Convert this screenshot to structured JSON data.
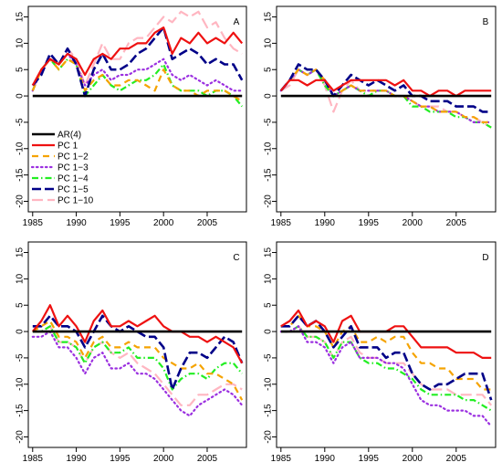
{
  "chart_data": {
    "type": "line",
    "x_ticks": [
      1985,
      1990,
      1995,
      2000,
      2005
    ],
    "y_ticks": [
      15,
      10,
      5,
      0,
      -5,
      -10,
      -15,
      -20
    ],
    "xlim": [
      1984.5,
      2009.5
    ],
    "ylim": [
      -22,
      17
    ],
    "legend": {
      "placement": "bottom-left of panel A",
      "entries": [
        "AR(4)",
        "PC 1",
        "PC 1−2",
        "PC 1−3",
        "PC 1−4",
        "PC 1−5",
        "PC 1−10"
      ]
    },
    "series_styles": [
      {
        "key": "ar4",
        "color": "#000000",
        "dash": "",
        "width": 2.6
      },
      {
        "key": "pc1",
        "color": "#ee1111",
        "dash": "",
        "width": 2.2
      },
      {
        "key": "pc12",
        "color": "#f5a300",
        "dash": "7,5",
        "width": 2.2
      },
      {
        "key": "pc13",
        "color": "#9b30e0",
        "dash": "1.5,3.5",
        "width": 2.2
      },
      {
        "key": "pc14",
        "color": "#22ee22",
        "dash": "7,3,1.5,3",
        "width": 2.2
      },
      {
        "key": "pc15",
        "color": "#000088",
        "dash": "10,4",
        "width": 2.6
      },
      {
        "key": "pc110",
        "color": "#ffb6c1",
        "dash": "12,5",
        "width": 2.2
      }
    ],
    "panels": [
      {
        "label": "A",
        "x": [
          1985,
          1986,
          1987,
          1988,
          1989,
          1990,
          1991,
          1992,
          1993,
          1994,
          1995,
          1996,
          1997,
          1998,
          1999,
          2000,
          2001,
          2002,
          2003,
          2004,
          2005,
          2006,
          2007,
          2008,
          2009
        ],
        "series": {
          "ar4": [
            0,
            0,
            0,
            0,
            0,
            0,
            0,
            0,
            0,
            0,
            0,
            0,
            0,
            0,
            0,
            0,
            0,
            0,
            0,
            0,
            0,
            0,
            0,
            0,
            0
          ],
          "pc1": [
            2,
            5,
            7,
            6,
            8,
            7,
            4,
            7,
            8,
            7,
            9,
            9,
            10,
            10,
            12,
            13,
            8,
            11,
            10,
            12,
            10,
            11,
            10,
            12,
            10
          ],
          "pc12": [
            1,
            5,
            7,
            5,
            7,
            6,
            1,
            3,
            4,
            2,
            2,
            3,
            3,
            2,
            1,
            5,
            2,
            1,
            1,
            0,
            1,
            1,
            1,
            0,
            -1
          ],
          "pc13": [
            1,
            5,
            7,
            6,
            8,
            6,
            2,
            4,
            5,
            3,
            4,
            4,
            5,
            5,
            6,
            7,
            4,
            3,
            4,
            3,
            2,
            3,
            2,
            1,
            1
          ],
          "pc14": [
            1,
            5,
            7,
            5,
            7,
            6,
            0,
            2,
            4,
            2,
            1,
            2,
            3,
            3,
            4,
            6,
            2,
            1,
            1,
            1,
            0,
            1,
            1,
            0,
            -2
          ],
          "pc15": [
            2,
            4,
            8,
            6,
            9,
            6,
            0,
            5,
            8,
            5,
            5,
            6,
            8,
            9,
            11,
            13,
            7,
            8,
            9,
            8,
            6,
            7,
            6,
            6,
            3
          ],
          "pc110": [
            1,
            5,
            7,
            6,
            9,
            7,
            2,
            6,
            10,
            7,
            7,
            10,
            11,
            11,
            13,
            15,
            14,
            16,
            15,
            16,
            13,
            14,
            11,
            9,
            8
          ]
        }
      },
      {
        "label": "B",
        "x": [
          1985,
          1986,
          1987,
          1988,
          1989,
          1990,
          1991,
          1992,
          1993,
          1994,
          1995,
          1996,
          1997,
          1998,
          1999,
          2000,
          2001,
          2002,
          2003,
          2004,
          2005,
          2006,
          2007,
          2008,
          2009
        ],
        "series": {
          "ar4": [
            0,
            0,
            0,
            0,
            0,
            0,
            0,
            0,
            0,
            0,
            0,
            0,
            0,
            0,
            0,
            0,
            0,
            0,
            0,
            0,
            0,
            0,
            0,
            0,
            0
          ],
          "pc1": [
            1,
            3,
            3,
            2,
            3,
            3,
            1,
            2,
            3,
            3,
            3,
            3,
            3,
            2,
            3,
            1,
            1,
            0,
            1,
            1,
            0,
            1,
            1,
            1,
            1
          ],
          "pc12": [
            1,
            3,
            5,
            4,
            5,
            3,
            0,
            1,
            2,
            1,
            1,
            1,
            1,
            0,
            0,
            -1,
            -2,
            -2,
            -3,
            -3,
            -3,
            -4,
            -4,
            -5,
            -5
          ],
          "pc13": [
            1,
            3,
            5,
            4,
            5,
            3,
            0,
            1,
            2,
            1,
            1,
            1,
            1,
            0,
            0,
            -1,
            -2,
            -2,
            -3,
            -3,
            -3,
            -4,
            -5,
            -5,
            -5
          ],
          "pc14": [
            1,
            3,
            5,
            4,
            5,
            2,
            0,
            1,
            2,
            1,
            0,
            1,
            1,
            0,
            0,
            -2,
            -2,
            -3,
            -3,
            -3,
            -4,
            -4,
            -5,
            -5,
            -6
          ],
          "pc15": [
            1,
            3,
            6,
            5,
            5,
            3,
            0,
            2,
            4,
            3,
            2,
            3,
            2,
            1,
            2,
            0,
            0,
            -1,
            -1,
            -1,
            -2,
            -2,
            -2,
            -3,
            -3
          ],
          "pc110": [
            1,
            2,
            5,
            4,
            5,
            2,
            -3,
            1,
            3,
            1,
            1,
            1,
            1,
            0,
            0,
            -1,
            -2,
            -2,
            -2,
            -3,
            -3,
            -4,
            -4,
            -5,
            -6
          ]
        }
      },
      {
        "label": "C",
        "x": [
          1985,
          1986,
          1987,
          1988,
          1989,
          1990,
          1991,
          1992,
          1993,
          1994,
          1995,
          1996,
          1997,
          1998,
          1999,
          2000,
          2001,
          2002,
          2003,
          2004,
          2005,
          2006,
          2007,
          2008,
          2009
        ],
        "series": {
          "ar4": [
            0,
            0,
            0,
            0,
            0,
            0,
            0,
            0,
            0,
            0,
            0,
            0,
            0,
            0,
            0,
            0,
            0,
            0,
            0,
            0,
            0,
            0,
            0,
            0,
            0
          ],
          "pc1": [
            0,
            2,
            5,
            1,
            3,
            1,
            -2,
            2,
            4,
            1,
            1,
            2,
            1,
            2,
            3,
            1,
            0,
            0,
            -1,
            -1,
            -2,
            -1,
            -2,
            -3,
            -6
          ],
          "pc12": [
            0,
            1,
            2,
            -1,
            -1,
            -2,
            -5,
            -2,
            -1,
            -3,
            -3,
            -2,
            -3,
            -3,
            -3,
            -5,
            -6,
            -7,
            -7,
            -6,
            -8,
            -8,
            -9,
            -10,
            -13
          ],
          "pc13": [
            -1,
            -1,
            0,
            -3,
            -3,
            -5,
            -8,
            -5,
            -4,
            -7,
            -7,
            -6,
            -8,
            -8,
            -9,
            -11,
            -13,
            -15,
            -16,
            -14,
            -13,
            -12,
            -11,
            -12,
            -14
          ],
          "pc14": [
            0,
            0,
            1,
            -2,
            -2,
            -3,
            -6,
            -3,
            -2,
            -4,
            -4,
            -3,
            -5,
            -5,
            -5,
            -7,
            -11,
            -9,
            -8,
            -8,
            -9,
            -7,
            -6,
            -6,
            -8
          ],
          "pc15": [
            1,
            1,
            3,
            1,
            1,
            0,
            -3,
            0,
            3,
            1,
            0,
            1,
            0,
            -1,
            -1,
            -3,
            -11,
            -7,
            -4,
            -4,
            -5,
            -3,
            -1,
            -2,
            -6
          ],
          "pc110": [
            0,
            0,
            1,
            -2,
            -2,
            -3,
            -6,
            -3,
            -2,
            -4,
            -5,
            -4,
            -6,
            -7,
            -8,
            -10,
            -12,
            -14,
            -14,
            -12,
            -12,
            -11,
            -10,
            -10,
            -11
          ]
        }
      },
      {
        "label": "D",
        "x": [
          1985,
          1986,
          1987,
          1988,
          1989,
          1990,
          1991,
          1992,
          1993,
          1994,
          1995,
          1996,
          1997,
          1998,
          1999,
          2000,
          2001,
          2002,
          2003,
          2004,
          2005,
          2006,
          2007,
          2008,
          2009
        ],
        "series": {
          "ar4": [
            0,
            0,
            0,
            0,
            0,
            0,
            0,
            0,
            0,
            0,
            0,
            0,
            0,
            0,
            0,
            0,
            0,
            0,
            0,
            0,
            0,
            0,
            0,
            0,
            0
          ],
          "pc1": [
            1,
            2,
            4,
            1,
            2,
            1,
            -2,
            2,
            3,
            0,
            0,
            0,
            0,
            1,
            1,
            -1,
            -3,
            -3,
            -3,
            -3,
            -4,
            -4,
            -4,
            -5,
            -5
          ],
          "pc12": [
            1,
            1,
            3,
            1,
            1,
            0,
            -3,
            0,
            1,
            -2,
            -2,
            -1,
            -2,
            -1,
            -1,
            -4,
            -6,
            -6,
            -7,
            -7,
            -9,
            -9,
            -9,
            -11,
            -11
          ],
          "pc13": [
            0,
            0,
            1,
            -2,
            -2,
            -3,
            -6,
            -3,
            -2,
            -5,
            -5,
            -5,
            -6,
            -6,
            -7,
            -10,
            -13,
            -14,
            -14,
            -15,
            -15,
            -15,
            -16,
            -16,
            -18
          ],
          "pc14": [
            0,
            0,
            1,
            -1,
            -1,
            -2,
            -5,
            -2,
            -2,
            -5,
            -6,
            -6,
            -7,
            -7,
            -8,
            -9,
            -11,
            -12,
            -12,
            -12,
            -12,
            -13,
            -13,
            -14,
            -15
          ],
          "pc15": [
            1,
            1,
            3,
            1,
            2,
            0,
            -3,
            -1,
            1,
            -3,
            -3,
            -3,
            -5,
            -4,
            -4,
            -8,
            -10,
            -11,
            -10,
            -10,
            -9,
            -8,
            -8,
            -8,
            -13
          ],
          "pc110": [
            0,
            0,
            1,
            -1,
            -1,
            -2,
            -5,
            -2,
            -1,
            -4,
            -5,
            -5,
            -6,
            -6,
            -6,
            -8,
            -10,
            -11,
            -11,
            -11,
            -12,
            -12,
            -12,
            -12,
            -14
          ]
        }
      }
    ]
  }
}
